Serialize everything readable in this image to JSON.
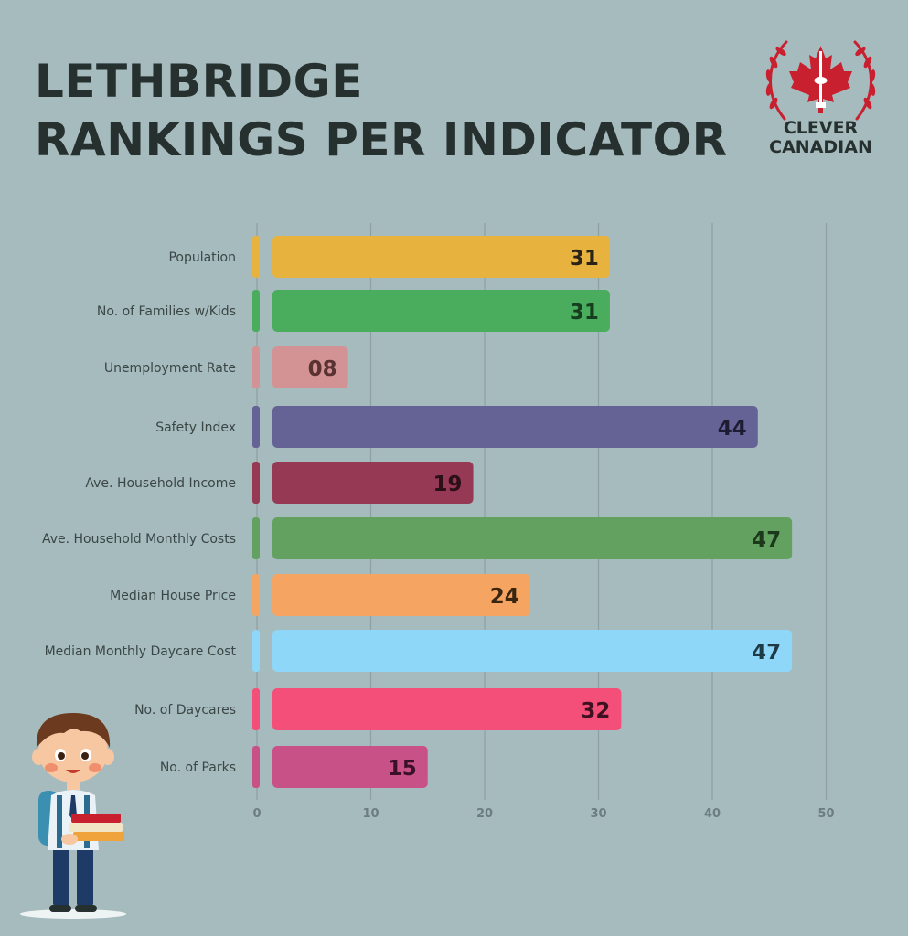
{
  "header": {
    "title_line1": "LETHBRIDGE",
    "title_line2": "RANKINGS PER INDICATOR"
  },
  "logo": {
    "line1": "CLEVER",
    "line2": "CANADIAN",
    "icon": "maple-leaf-tower-wreath-icon",
    "brand_color": "#c9202f"
  },
  "illustration": {
    "icon": "student-boy-with-books-icon"
  },
  "chart_data": {
    "type": "bar",
    "orientation": "horizontal",
    "title": "LETHBRIDGE RANKINGS PER INDICATOR",
    "xlabel": "",
    "ylabel": "",
    "xlim": [
      0,
      50
    ],
    "x_ticks": [
      0,
      10,
      20,
      30,
      40,
      50
    ],
    "grid": true,
    "categories": [
      "Population",
      "No. of Families w/Kids",
      "Unemployment Rate",
      "Safety Index",
      "Ave. Household Income",
      "Ave. Household Monthly Costs",
      "Median House Price",
      "Median Monthly Daycare Cost",
      "No. of Daycares",
      "No. of Parks"
    ],
    "values": [
      31,
      31,
      8,
      44,
      19,
      47,
      24,
      47,
      32,
      15
    ],
    "value_labels": [
      "31",
      "31",
      "08",
      "44",
      "19",
      "47",
      "24",
      "47",
      "32",
      "15"
    ],
    "colors": [
      "#e8b23e",
      "#4aad5e",
      "#d39394",
      "#656396",
      "#963955",
      "#63a160",
      "#f6a461",
      "#8fd7f8",
      "#f34f78",
      "#c85288"
    ],
    "label_colors": [
      "#2a2418",
      "#173d1f",
      "#5b3232",
      "#1d1c33",
      "#2c1018",
      "#1c3a1b",
      "#3a2511",
      "#1f3a47",
      "#3d1120",
      "#3a1128"
    ]
  }
}
